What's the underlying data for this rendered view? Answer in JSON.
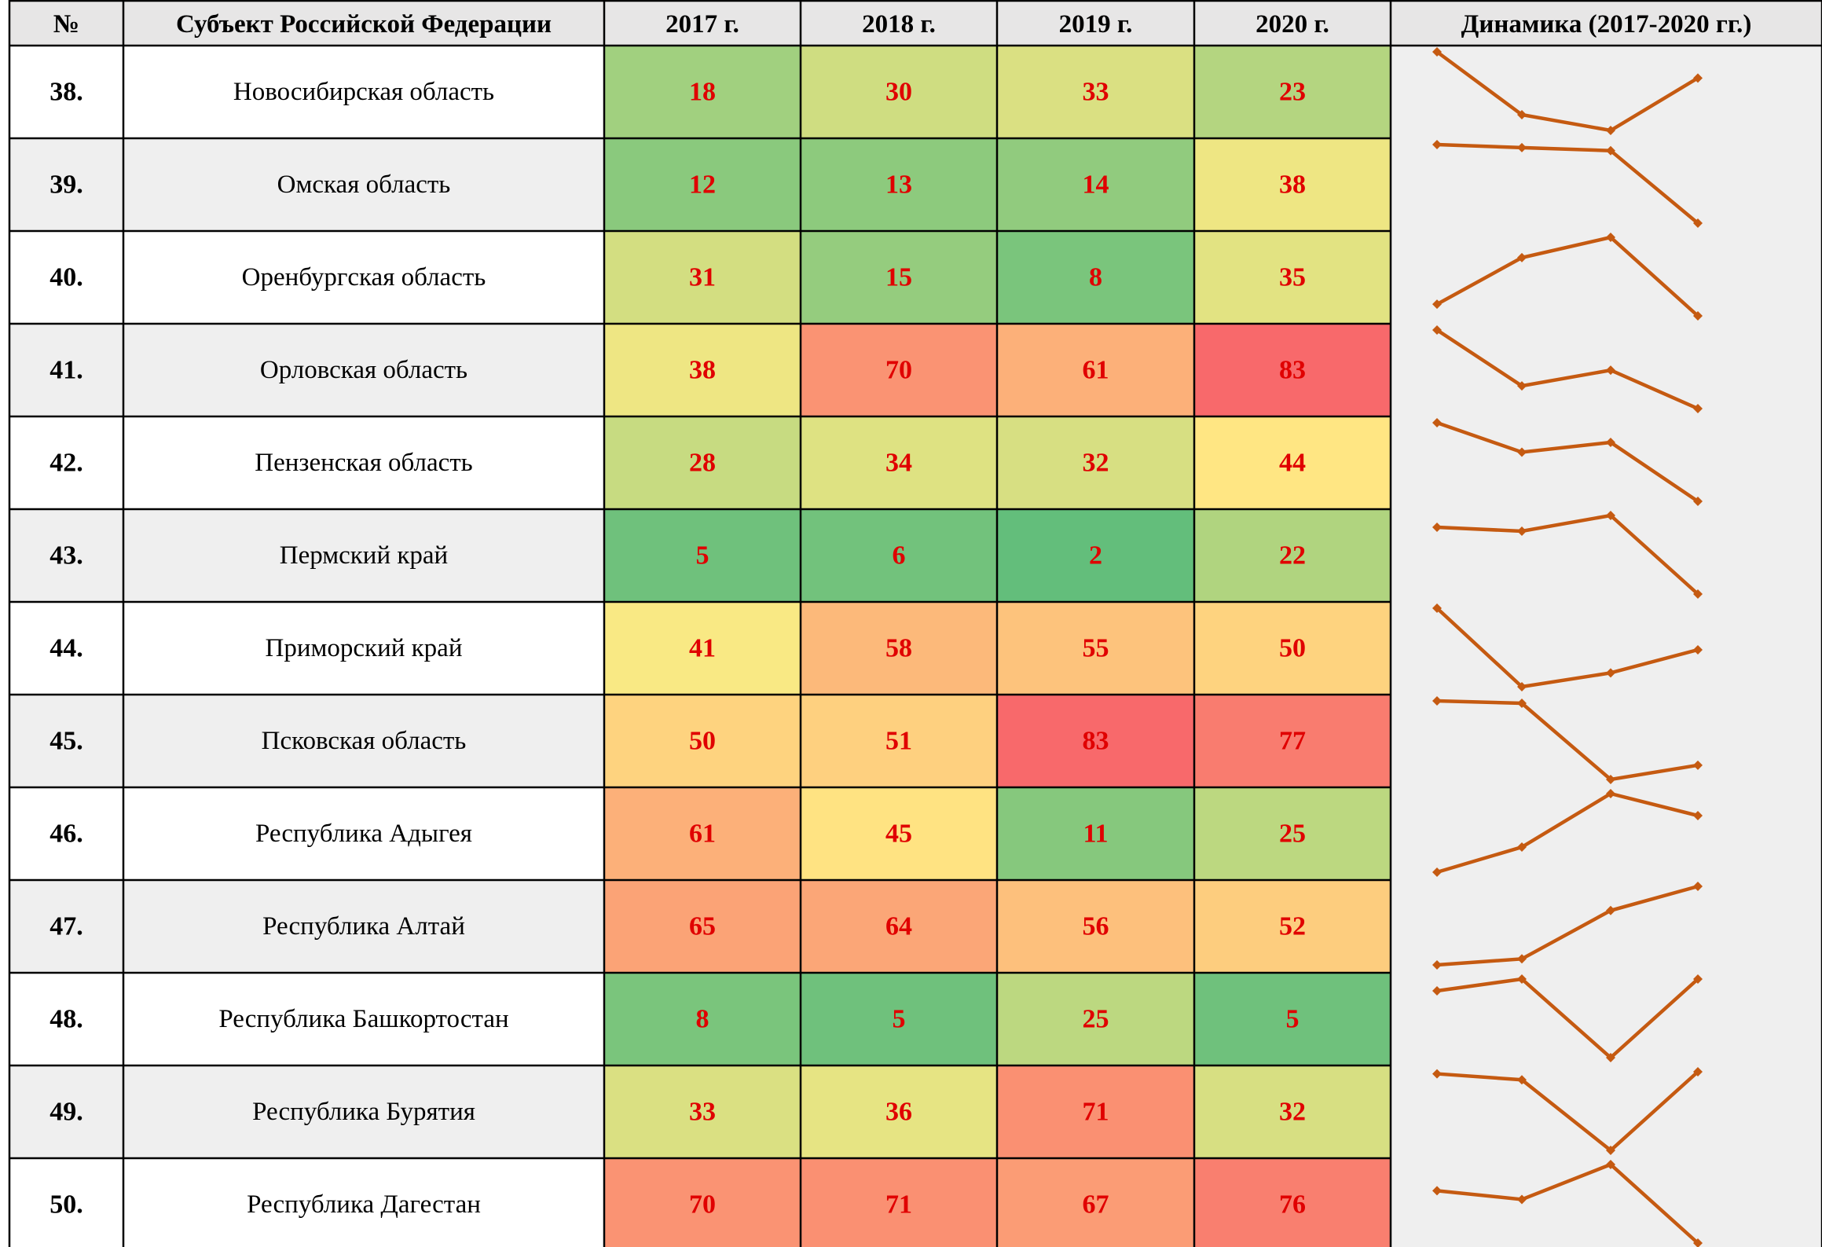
{
  "table": {
    "headers": [
      "№",
      "Субъект Российской Федерации",
      "2017 г.",
      "2018 г.",
      "2019 г.",
      "2020 г.",
      "Динамика (2017-2020 гг.)"
    ],
    "rows": [
      [
        "38.",
        "Новосибирская область",
        18,
        30,
        33,
        23
      ],
      [
        "39.",
        "Омская область",
        12,
        13,
        14,
        38
      ],
      [
        "40.",
        "Оренбургская область",
        31,
        15,
        8,
        35
      ],
      [
        "41.",
        "Орловская область",
        38,
        70,
        61,
        83
      ],
      [
        "42.",
        "Пензенская область",
        28,
        34,
        32,
        44
      ],
      [
        "43.",
        "Пермский край",
        5,
        6,
        2,
        22
      ],
      [
        "44.",
        "Приморский край",
        41,
        58,
        55,
        50
      ],
      [
        "45.",
        "Псковская область",
        50,
        51,
        83,
        77
      ],
      [
        "46.",
        "Республика Адыгея",
        61,
        45,
        11,
        25
      ],
      [
        "47.",
        "Республика Алтай",
        65,
        64,
        56,
        52
      ],
      [
        "48.",
        "Республика Башкортостан",
        8,
        5,
        25,
        5
      ],
      [
        "49.",
        "Республика Бурятия",
        33,
        36,
        71,
        32
      ],
      [
        "50.",
        "Республика Дагестан",
        70,
        71,
        67,
        76
      ]
    ],
    "sparkline_color": "#c55a11"
  }
}
